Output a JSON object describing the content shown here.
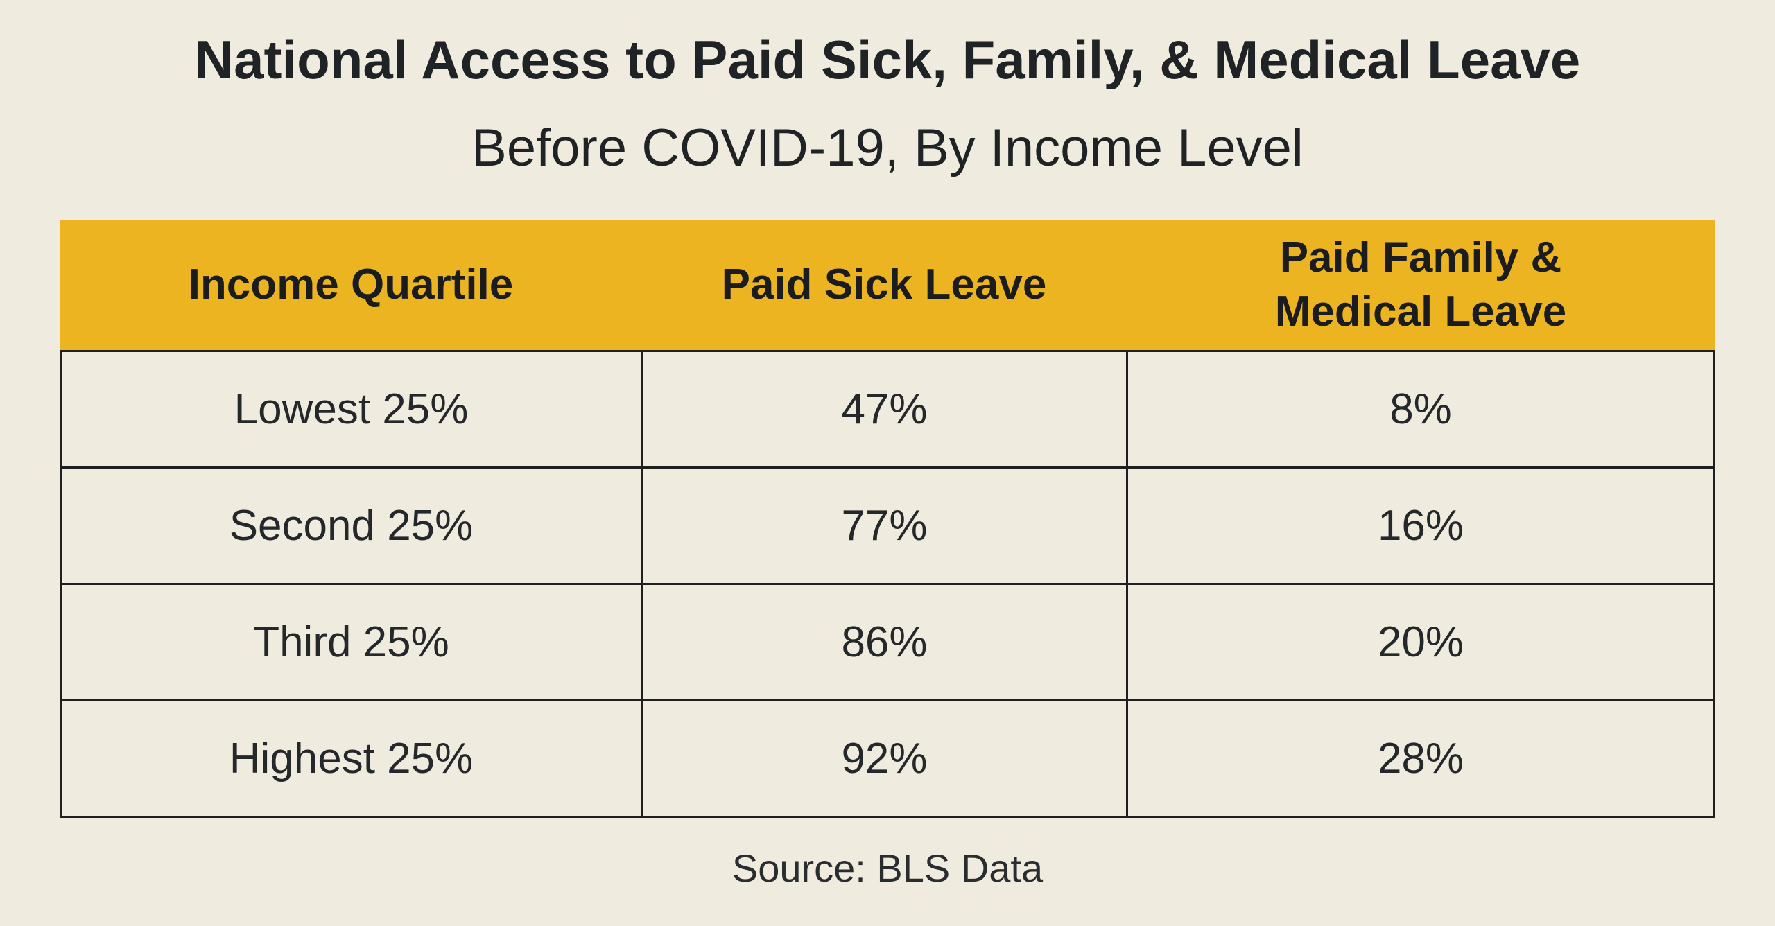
{
  "title": "National Access to Paid Sick, Family, & Medical Leave",
  "subtitle": "Before COVID-19, By Income Level",
  "source": "Source: BLS Data",
  "colors": {
    "background": "#efebde",
    "header": "#edb421",
    "text": "#1f2326"
  },
  "chart_data": {
    "type": "table",
    "title": "National Access to Paid Sick, Family, & Medical Leave",
    "subtitle": "Before COVID-19, By Income Level",
    "columns": [
      "Income Quartile",
      "Paid Sick Leave",
      "Paid Family & Medical Leave"
    ],
    "header_lines": {
      "col1": [
        "Income Quartile"
      ],
      "col2": [
        "Paid Sick Leave"
      ],
      "col3": [
        "Paid Family &",
        "Medical Leave"
      ]
    },
    "rows": [
      [
        "Lowest 25%",
        "47%",
        "8%"
      ],
      [
        "Second 25%",
        "77%",
        "16%"
      ],
      [
        "Third 25%",
        "86%",
        "20%"
      ],
      [
        "Highest 25%",
        "92%",
        "28%"
      ]
    ],
    "source": "Source: BLS Data"
  }
}
